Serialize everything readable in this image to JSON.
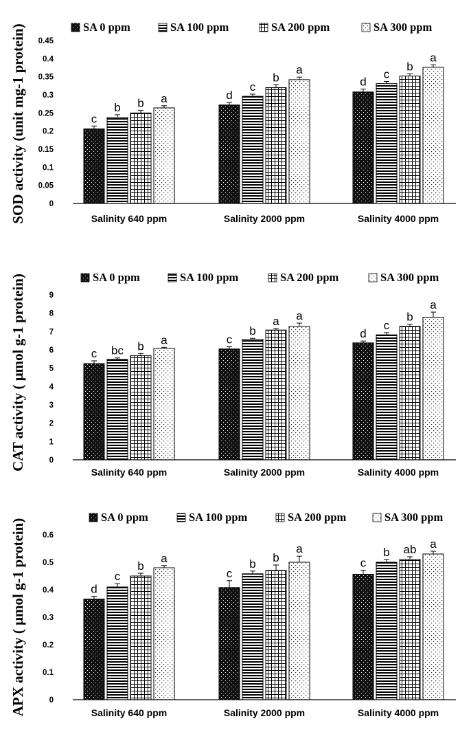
{
  "chart_data": [
    {
      "type": "bar",
      "ylabel": "SOD activity (unit mg-1 protein)",
      "categories": [
        "Salinity 640 ppm",
        "Salinity 2000 ppm",
        "Salinity 4000 ppm"
      ],
      "ylim": [
        0,
        0.45
      ],
      "yticks": [
        "0",
        "0.05",
        "0.1",
        "0.15",
        "0.2",
        "0.25",
        "0.3",
        "0.35",
        "0.4",
        "0.45"
      ],
      "legend": "top",
      "series": [
        {
          "name": "SA 0 ppm",
          "values": [
            0.206,
            0.272,
            0.308
          ],
          "errors": [
            0.008,
            0.007,
            0.008
          ],
          "letters": [
            "c",
            "d",
            "d"
          ]
        },
        {
          "name": "SA 100 ppm",
          "values": [
            0.238,
            0.296,
            0.331
          ],
          "errors": [
            0.007,
            0.006,
            0.006
          ],
          "letters": [
            "b",
            "c",
            "c"
          ]
        },
        {
          "name": "SA 200 ppm",
          "values": [
            0.25,
            0.32,
            0.352
          ],
          "errors": [
            0.007,
            0.008,
            0.006
          ],
          "letters": [
            "b",
            "b",
            "b"
          ]
        },
        {
          "name": "SA 300 ppm",
          "values": [
            0.264,
            0.342,
            0.376
          ],
          "errors": [
            0.006,
            0.007,
            0.007
          ],
          "letters": [
            "a",
            "a",
            "a"
          ]
        }
      ]
    },
    {
      "type": "bar",
      "ylabel": "CAT activity ( μmol g-1 protein)",
      "categories": [
        "Salinity 640 ppm",
        "Salinity 2000 ppm",
        "Salinity 4000 ppm"
      ],
      "ylim": [
        0,
        9
      ],
      "yticks": [
        "0",
        "1",
        "2",
        "3",
        "4",
        "5",
        "6",
        "7",
        "8",
        "9"
      ],
      "legend": "top",
      "series": [
        {
          "name": "SA 0 ppm",
          "values": [
            5.25,
            6.05,
            6.38
          ],
          "errors": [
            0.15,
            0.12,
            0.1
          ],
          "letters": [
            "c",
            "c",
            "d"
          ]
        },
        {
          "name": "SA 100 ppm",
          "values": [
            5.48,
            6.58,
            6.82
          ],
          "errors": [
            0.08,
            0.05,
            0.12
          ],
          "letters": [
            "bc",
            "b",
            "c"
          ]
        },
        {
          "name": "SA 200 ppm",
          "values": [
            5.68,
            7.08,
            7.28
          ],
          "errors": [
            0.12,
            0.08,
            0.12
          ],
          "letters": [
            "b",
            "a",
            "b"
          ]
        },
        {
          "name": "SA 300 ppm",
          "values": [
            6.08,
            7.28,
            7.78
          ],
          "errors": [
            0.06,
            0.18,
            0.28
          ],
          "letters": [
            "a",
            "a",
            "a"
          ]
        }
      ]
    },
    {
      "type": "bar",
      "ylabel": "APX activity ( μmol g-1 protein)",
      "categories": [
        "Salinity 640 ppm",
        "Salinity 2000 ppm",
        "Salinity 4000 ppm"
      ],
      "ylim": [
        0,
        0.6
      ],
      "yticks": [
        "0",
        "0.1",
        "0.2",
        "0.3",
        "0.4",
        "0.5",
        "0.6"
      ],
      "legend": "top",
      "series": [
        {
          "name": "SA 0 ppm",
          "values": [
            0.366,
            0.408,
            0.456
          ],
          "errors": [
            0.01,
            0.025,
            0.015
          ],
          "letters": [
            "d",
            "c",
            "c"
          ]
        },
        {
          "name": "SA 100 ppm",
          "values": [
            0.41,
            0.458,
            0.5
          ],
          "errors": [
            0.012,
            0.01,
            0.01
          ],
          "letters": [
            "c",
            "b",
            "b"
          ]
        },
        {
          "name": "SA 200 ppm",
          "values": [
            0.45,
            0.47,
            0.51
          ],
          "errors": [
            0.01,
            0.02,
            0.01
          ],
          "letters": [
            "b",
            "b",
            "ab"
          ]
        },
        {
          "name": "SA 300 ppm",
          "values": [
            0.48,
            0.5,
            0.53
          ],
          "errors": [
            0.008,
            0.022,
            0.01
          ],
          "letters": [
            "a",
            "a",
            "a"
          ]
        }
      ]
    }
  ]
}
